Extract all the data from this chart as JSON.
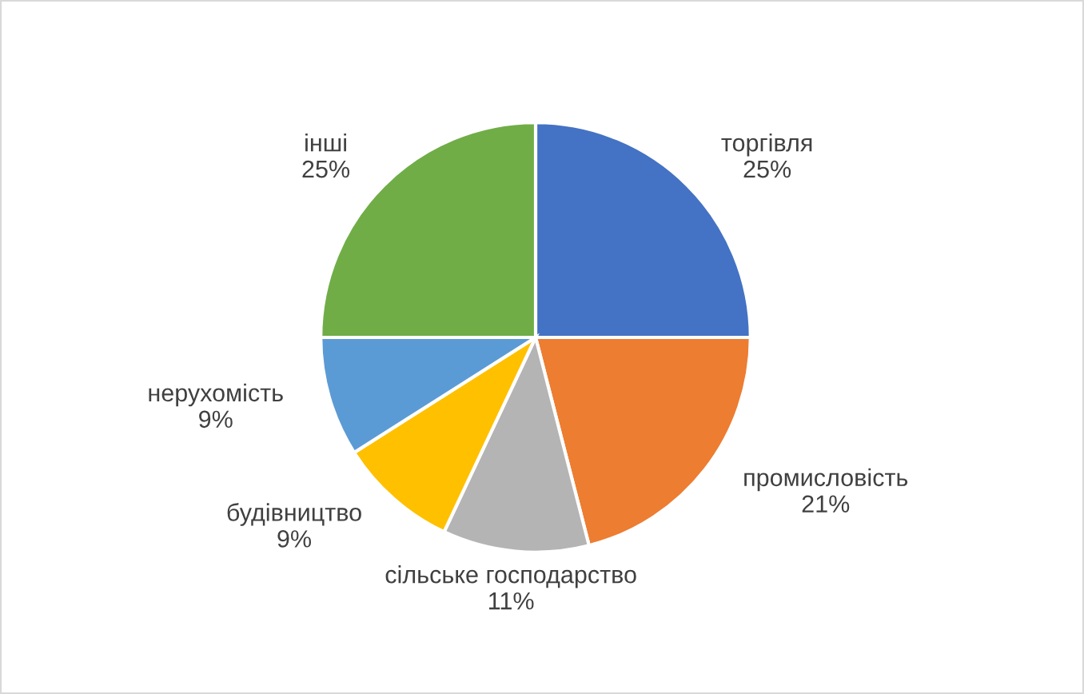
{
  "chart_data": {
    "type": "pie",
    "categories": [
      "торгівля",
      "промисловість",
      "сільське господарство",
      "будівництво",
      "нерухомість",
      "інші"
    ],
    "values": [
      25,
      21,
      11,
      9,
      9,
      25
    ],
    "value_labels": [
      "25%",
      "21%",
      "11%",
      "9%",
      "9%",
      "25%"
    ],
    "colors": [
      "#4472c4",
      "#ed7d31",
      "#b4b4b4",
      "#ffc000",
      "#5b9bd5",
      "#70ad47"
    ],
    "legend": false
  }
}
